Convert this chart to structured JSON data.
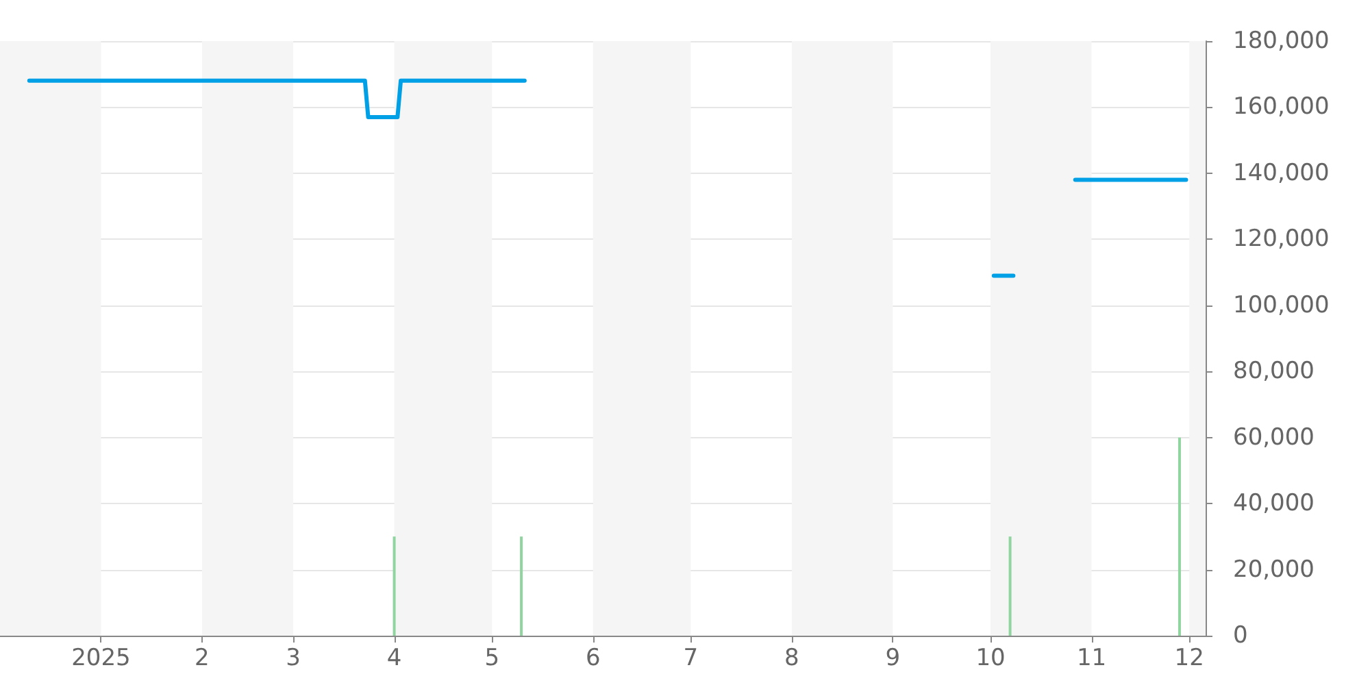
{
  "chart_data": {
    "type": "line",
    "xlim": [
      "2024-12-01",
      "2025-12-06"
    ],
    "xticks": [
      {
        "value": "2025-01-01",
        "label": "2025"
      },
      {
        "value": "2025-02-01",
        "label": "2"
      },
      {
        "value": "2025-03-01",
        "label": "3"
      },
      {
        "value": "2025-04-01",
        "label": "4"
      },
      {
        "value": "2025-05-01",
        "label": "5"
      },
      {
        "value": "2025-06-01",
        "label": "6"
      },
      {
        "value": "2025-07-01",
        "label": "7"
      },
      {
        "value": "2025-08-01",
        "label": "8"
      },
      {
        "value": "2025-09-01",
        "label": "9"
      },
      {
        "value": "2025-10-01",
        "label": "10"
      },
      {
        "value": "2025-11-01",
        "label": "11"
      },
      {
        "value": "2025-12-01",
        "label": "12"
      }
    ],
    "ylim": [
      0,
      180000
    ],
    "yticks": [
      {
        "value": 0,
        "label": "0"
      },
      {
        "value": 20000,
        "label": "20,000"
      },
      {
        "value": 40000,
        "label": "40,000"
      },
      {
        "value": 60000,
        "label": "60,000"
      },
      {
        "value": 80000,
        "label": "80,000"
      },
      {
        "value": 100000,
        "label": "100,000"
      },
      {
        "value": 120000,
        "label": "120,000"
      },
      {
        "value": 140000,
        "label": "140,000"
      },
      {
        "value": 160000,
        "label": "160,000"
      },
      {
        "value": 180000,
        "label": "180,000"
      }
    ],
    "grid": "y",
    "series": [
      {
        "type": "bar",
        "color": "#90d5a0",
        "x": [
          "2025-04-01",
          "2025-05-10",
          "2025-10-07",
          "2025-11-28"
        ],
        "values": [
          30000,
          30000,
          30000,
          60000
        ]
      },
      {
        "color": "#00a0e6",
        "x": [
          "2024-12-10",
          "2025-03-23",
          "2025-03-24",
          "2025-04-02",
          "2025-04-03",
          "2025-05-11",
          "2025-07-01",
          "2025-10-02",
          "2025-10-08",
          "2025-10-15",
          "2025-10-27",
          "2025-11-30"
        ],
        "values": [
          168000,
          168000,
          157000,
          157000,
          168000,
          168000,
          null,
          109000,
          109000,
          null,
          138000,
          138000
        ]
      }
    ],
    "bands": [
      {
        "axis": "x",
        "from": "2024-12-01",
        "to": "2025-01-01",
        "color": "#f5f5f5"
      },
      {
        "axis": "x",
        "from": "2025-02-01",
        "to": "2025-03-01",
        "color": "#f5f5f5"
      },
      {
        "axis": "x",
        "from": "2025-04-01",
        "to": "2025-05-01",
        "color": "#f5f5f5"
      },
      {
        "axis": "x",
        "from": "2025-06-01",
        "to": "2025-07-01",
        "color": "#f5f5f5"
      },
      {
        "axis": "x",
        "from": "2025-08-01",
        "to": "2025-09-01",
        "color": "#f5f5f5"
      },
      {
        "axis": "x",
        "from": "2025-10-01",
        "to": "2025-11-01",
        "color": "#f5f5f5"
      },
      {
        "axis": "x",
        "from": "2025-12-01",
        "to": "2025-12-06",
        "color": "#f5f5f5"
      }
    ]
  }
}
